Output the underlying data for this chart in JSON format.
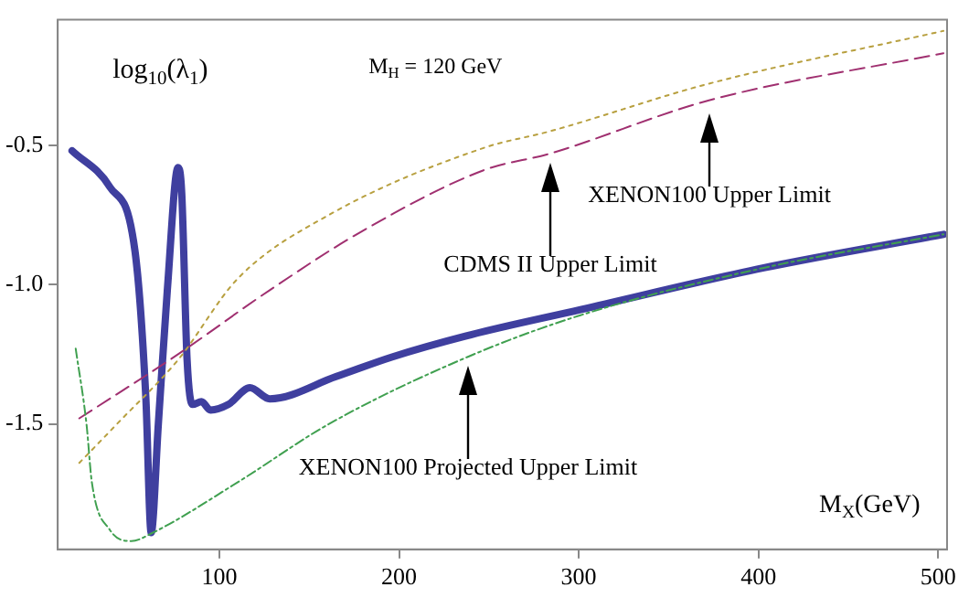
{
  "chart_data": {
    "type": "line",
    "ylabel": "log$_{10}$(λ$_{1}$)",
    "xlabel": "M$_{X}$(GeV)",
    "xlim": [
      10,
      505
    ],
    "ylim": [
      -1.95,
      -0.05
    ],
    "xticks": [
      100,
      200,
      300,
      400,
      500
    ],
    "yticks": [
      {
        "value": -0.5,
        "label": "-0.5"
      },
      {
        "value": -1,
        "label": "-1.0"
      },
      {
        "value": -1.5,
        "label": "-1.5"
      }
    ],
    "grid": false,
    "legend": false,
    "marker": "none",
    "series": [
      {
        "color": "#3f3f9f",
        "line_style": "solid",
        "x": [
          18,
          39,
          53,
          59,
          62,
          66,
          71,
          77,
          79,
          82,
          85,
          90,
          95,
          105,
          117,
          128,
          165,
          196,
          240,
          301,
          403,
          503
        ],
        "values": [
          -0.52,
          -0.65,
          -0.88,
          -1.4,
          -1.89,
          -1.5,
          -1.02,
          -0.58,
          -0.67,
          -1.27,
          -1.43,
          -1.42,
          -1.45,
          -1.43,
          -1.37,
          -1.41,
          -1.33,
          -1.26,
          -1.18,
          -1.09,
          -0.94,
          -0.82
        ]
      },
      {
        "color": "#b8a040",
        "line_style": "dotted",
        "x": [
          22,
          43,
          77,
          110,
          161,
          247,
          284,
          372,
          503
        ],
        "values": [
          -1.64,
          -1.5,
          -1.27,
          -0.98,
          -0.75,
          -0.51,
          -0.45,
          -0.28,
          -0.09
        ]
      },
      {
        "color": "#a03070",
        "line_style": "dashed",
        "x": [
          22,
          77,
          128,
          179,
          247,
          284,
          372,
          503
        ],
        "values": [
          -1.48,
          -1.25,
          -1.02,
          -0.81,
          -0.59,
          -0.53,
          -0.34,
          -0.17
        ]
      },
      {
        "color": "#40a050",
        "line_style": "dashdot",
        "x": [
          20,
          26,
          29,
          39,
          51,
          63,
          110,
          161,
          238,
          301,
          403,
          503
        ],
        "values": [
          -1.23,
          -1.5,
          -1.71,
          -1.88,
          -1.92,
          -1.89,
          -1.71,
          -1.5,
          -1.26,
          -1.11,
          -0.94,
          -0.82
        ]
      }
    ],
    "annotations": [
      "M$_{H}$ = 120 GeV",
      "XENON100 Upper Limit",
      "CDMS II Upper Limit",
      "XENON100 Projected Upper Limit"
    ]
  }
}
